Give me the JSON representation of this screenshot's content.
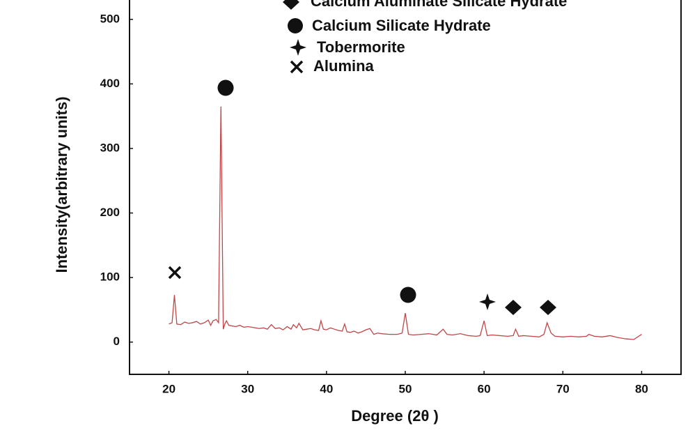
{
  "chart_data": {
    "type": "line",
    "xlabel": "Degree (2θ )",
    "ylabel": "Intensity(arbitrary units)",
    "phases": [
      "Calcium Aluminate Silicate Hydrate",
      "Calcium Silicate Hydrate",
      "Tobermorite",
      "Alumina"
    ],
    "color": "#c24545",
    "x": [
      20,
      20.4,
      20.7,
      21,
      21.5,
      22,
      22.5,
      23,
      23.5,
      24,
      24.5,
      25,
      25.3,
      25.6,
      26,
      26.3,
      26.6,
      26.9,
      27.1,
      27.3,
      27.6,
      28,
      28.5,
      29,
      29.5,
      30,
      30.5,
      31,
      31.5,
      32,
      32.5,
      33,
      33.5,
      34,
      34.5,
      35,
      35.5,
      35.8,
      36.2,
      36.5,
      37,
      37.5,
      38,
      38.5,
      39,
      39.3,
      39.6,
      40,
      40.5,
      41,
      41.5,
      42,
      42.3,
      42.6,
      43,
      43.5,
      44,
      44.5,
      45,
      45.5,
      46,
      46.5,
      47,
      48,
      49,
      49.6,
      50,
      50.4,
      51,
      52,
      53,
      54,
      54.8,
      55.3,
      56,
      57,
      58,
      59,
      59.5,
      60,
      60.4,
      61,
      62,
      63,
      63.7,
      64,
      64.4,
      65,
      66,
      67,
      67.6,
      68,
      68.5,
      69,
      70,
      71,
      72,
      73,
      73.3,
      74,
      75,
      76,
      77,
      78,
      79,
      80
    ],
    "values": [
      28,
      30,
      73,
      28,
      27,
      31,
      29,
      30,
      32,
      28,
      30,
      34,
      26,
      33,
      35,
      30,
      365,
      20,
      28,
      33,
      26,
      25,
      24,
      26,
      23,
      24,
      23,
      22,
      21,
      22,
      20,
      27,
      21,
      22,
      19,
      24,
      20,
      27,
      22,
      29,
      19,
      20,
      21,
      19,
      18,
      33,
      20,
      19,
      22,
      20,
      18,
      17,
      28,
      16,
      15,
      17,
      14,
      16,
      19,
      21,
      12,
      14,
      13,
      12,
      12,
      14,
      45,
      12,
      11,
      12,
      13,
      11,
      20,
      12,
      11,
      13,
      10,
      9,
      10,
      33,
      10,
      11,
      10,
      9,
      10,
      20,
      9,
      10,
      9,
      8,
      12,
      30,
      14,
      9,
      8,
      9,
      8,
      9,
      12,
      9,
      8,
      10,
      7,
      5,
      4,
      12
    ],
    "xlim": [
      15,
      85
    ],
    "ylim": [
      -50,
      530
    ],
    "xticks": [
      20,
      30,
      40,
      50,
      60,
      70,
      80
    ],
    "yticks": [
      0,
      100,
      200,
      300,
      400,
      500
    ],
    "grid": false
  }
}
